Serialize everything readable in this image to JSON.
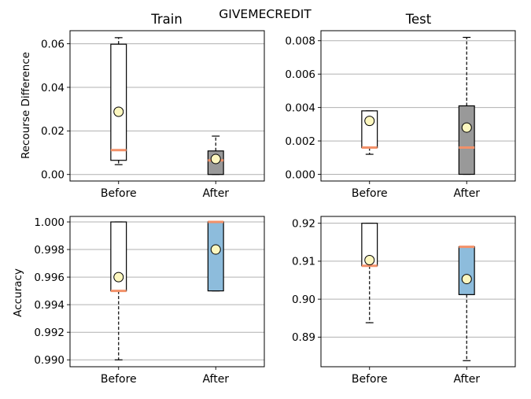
{
  "figure": {
    "suptitle": "GIVEMECREDIT",
    "col_titles": [
      "Train",
      "Test"
    ],
    "row_labels": [
      "Recourse Difference",
      "Accuracy"
    ]
  },
  "colors": {
    "before_box": "#ffffff",
    "after_gray": "#999999",
    "after_blue": "#8dbcdc",
    "median": "#f39169",
    "mean_marker": "#fdf7bf",
    "grid": "#b0b0b0"
  },
  "chart_data": [
    {
      "type": "box",
      "row": "Recourse Difference",
      "column": "Train",
      "categories": [
        "Before",
        "After"
      ],
      "ylim": [
        -0.003,
        0.066
      ],
      "yticks": [
        "0.00",
        "0.02",
        "0.04",
        "0.06"
      ],
      "ytick_values": [
        0.0,
        0.02,
        0.04,
        0.06
      ],
      "grid": "y",
      "boxes": [
        {
          "label": "Before",
          "whislo": 0.0045,
          "q1": 0.0065,
          "med": 0.0112,
          "q3": 0.0598,
          "whishi": 0.0628,
          "mean": 0.0288,
          "fill": "#ffffff"
        },
        {
          "label": "After",
          "whislo": 0.0,
          "q1": 0.0,
          "med": 0.0065,
          "q3": 0.0108,
          "whishi": 0.0176,
          "mean": 0.0071,
          "fill": "#999999"
        }
      ]
    },
    {
      "type": "box",
      "row": "Recourse Difference",
      "column": "Test",
      "categories": [
        "Before",
        "After"
      ],
      "ylim": [
        -0.0004,
        0.0086
      ],
      "yticks": [
        "0.000",
        "0.002",
        "0.004",
        "0.006",
        "0.008"
      ],
      "ytick_values": [
        0.0,
        0.002,
        0.004,
        0.006,
        0.008
      ],
      "grid": "y",
      "boxes": [
        {
          "label": "Before",
          "whislo": 0.0012,
          "q1": 0.0016,
          "med": 0.0016,
          "q3": 0.0038,
          "whishi": 0.0038,
          "mean": 0.0032,
          "fill": "#ffffff"
        },
        {
          "label": "After",
          "whislo": 0.0,
          "q1": 0.0,
          "med": 0.0016,
          "q3": 0.0041,
          "whishi": 0.0082,
          "mean": 0.0028,
          "fill": "#999999"
        }
      ]
    },
    {
      "type": "box",
      "row": "Accuracy",
      "column": "Train",
      "categories": [
        "Before",
        "After"
      ],
      "ylim": [
        0.9895,
        1.0004
      ],
      "yticks": [
        "0.990",
        "0.992",
        "0.994",
        "0.996",
        "0.998",
        "1.000"
      ],
      "ytick_values": [
        0.99,
        0.992,
        0.994,
        0.996,
        0.998,
        1.0
      ],
      "grid": "y",
      "boxes": [
        {
          "label": "Before",
          "whislo": 0.99,
          "q1": 0.995,
          "med": 0.995,
          "q3": 1.0,
          "whishi": 1.0,
          "mean": 0.996,
          "fill": "#ffffff"
        },
        {
          "label": "After",
          "whislo": 0.995,
          "q1": 0.995,
          "med": 1.0,
          "q3": 1.0,
          "whishi": 1.0,
          "mean": 0.998,
          "fill": "#8dbcdc"
        }
      ]
    },
    {
      "type": "box",
      "row": "Accuracy",
      "column": "Test",
      "categories": [
        "Before",
        "After"
      ],
      "ylim": [
        0.8822,
        0.9218
      ],
      "yticks": [
        "0.89",
        "0.90",
        "0.91",
        "0.92"
      ],
      "ytick_values": [
        0.89,
        0.9,
        0.91,
        0.92
      ],
      "grid": "y",
      "boxes": [
        {
          "label": "Before",
          "whislo": 0.8938,
          "q1": 0.9088,
          "med": 0.9088,
          "q3": 0.92,
          "whishi": 0.92,
          "mean": 0.9103,
          "fill": "#ffffff"
        },
        {
          "label": "After",
          "whislo": 0.8838,
          "q1": 0.9012,
          "med": 0.9138,
          "q3": 0.9138,
          "whishi": 0.9138,
          "mean": 0.9053,
          "fill": "#8dbcdc"
        }
      ]
    }
  ]
}
